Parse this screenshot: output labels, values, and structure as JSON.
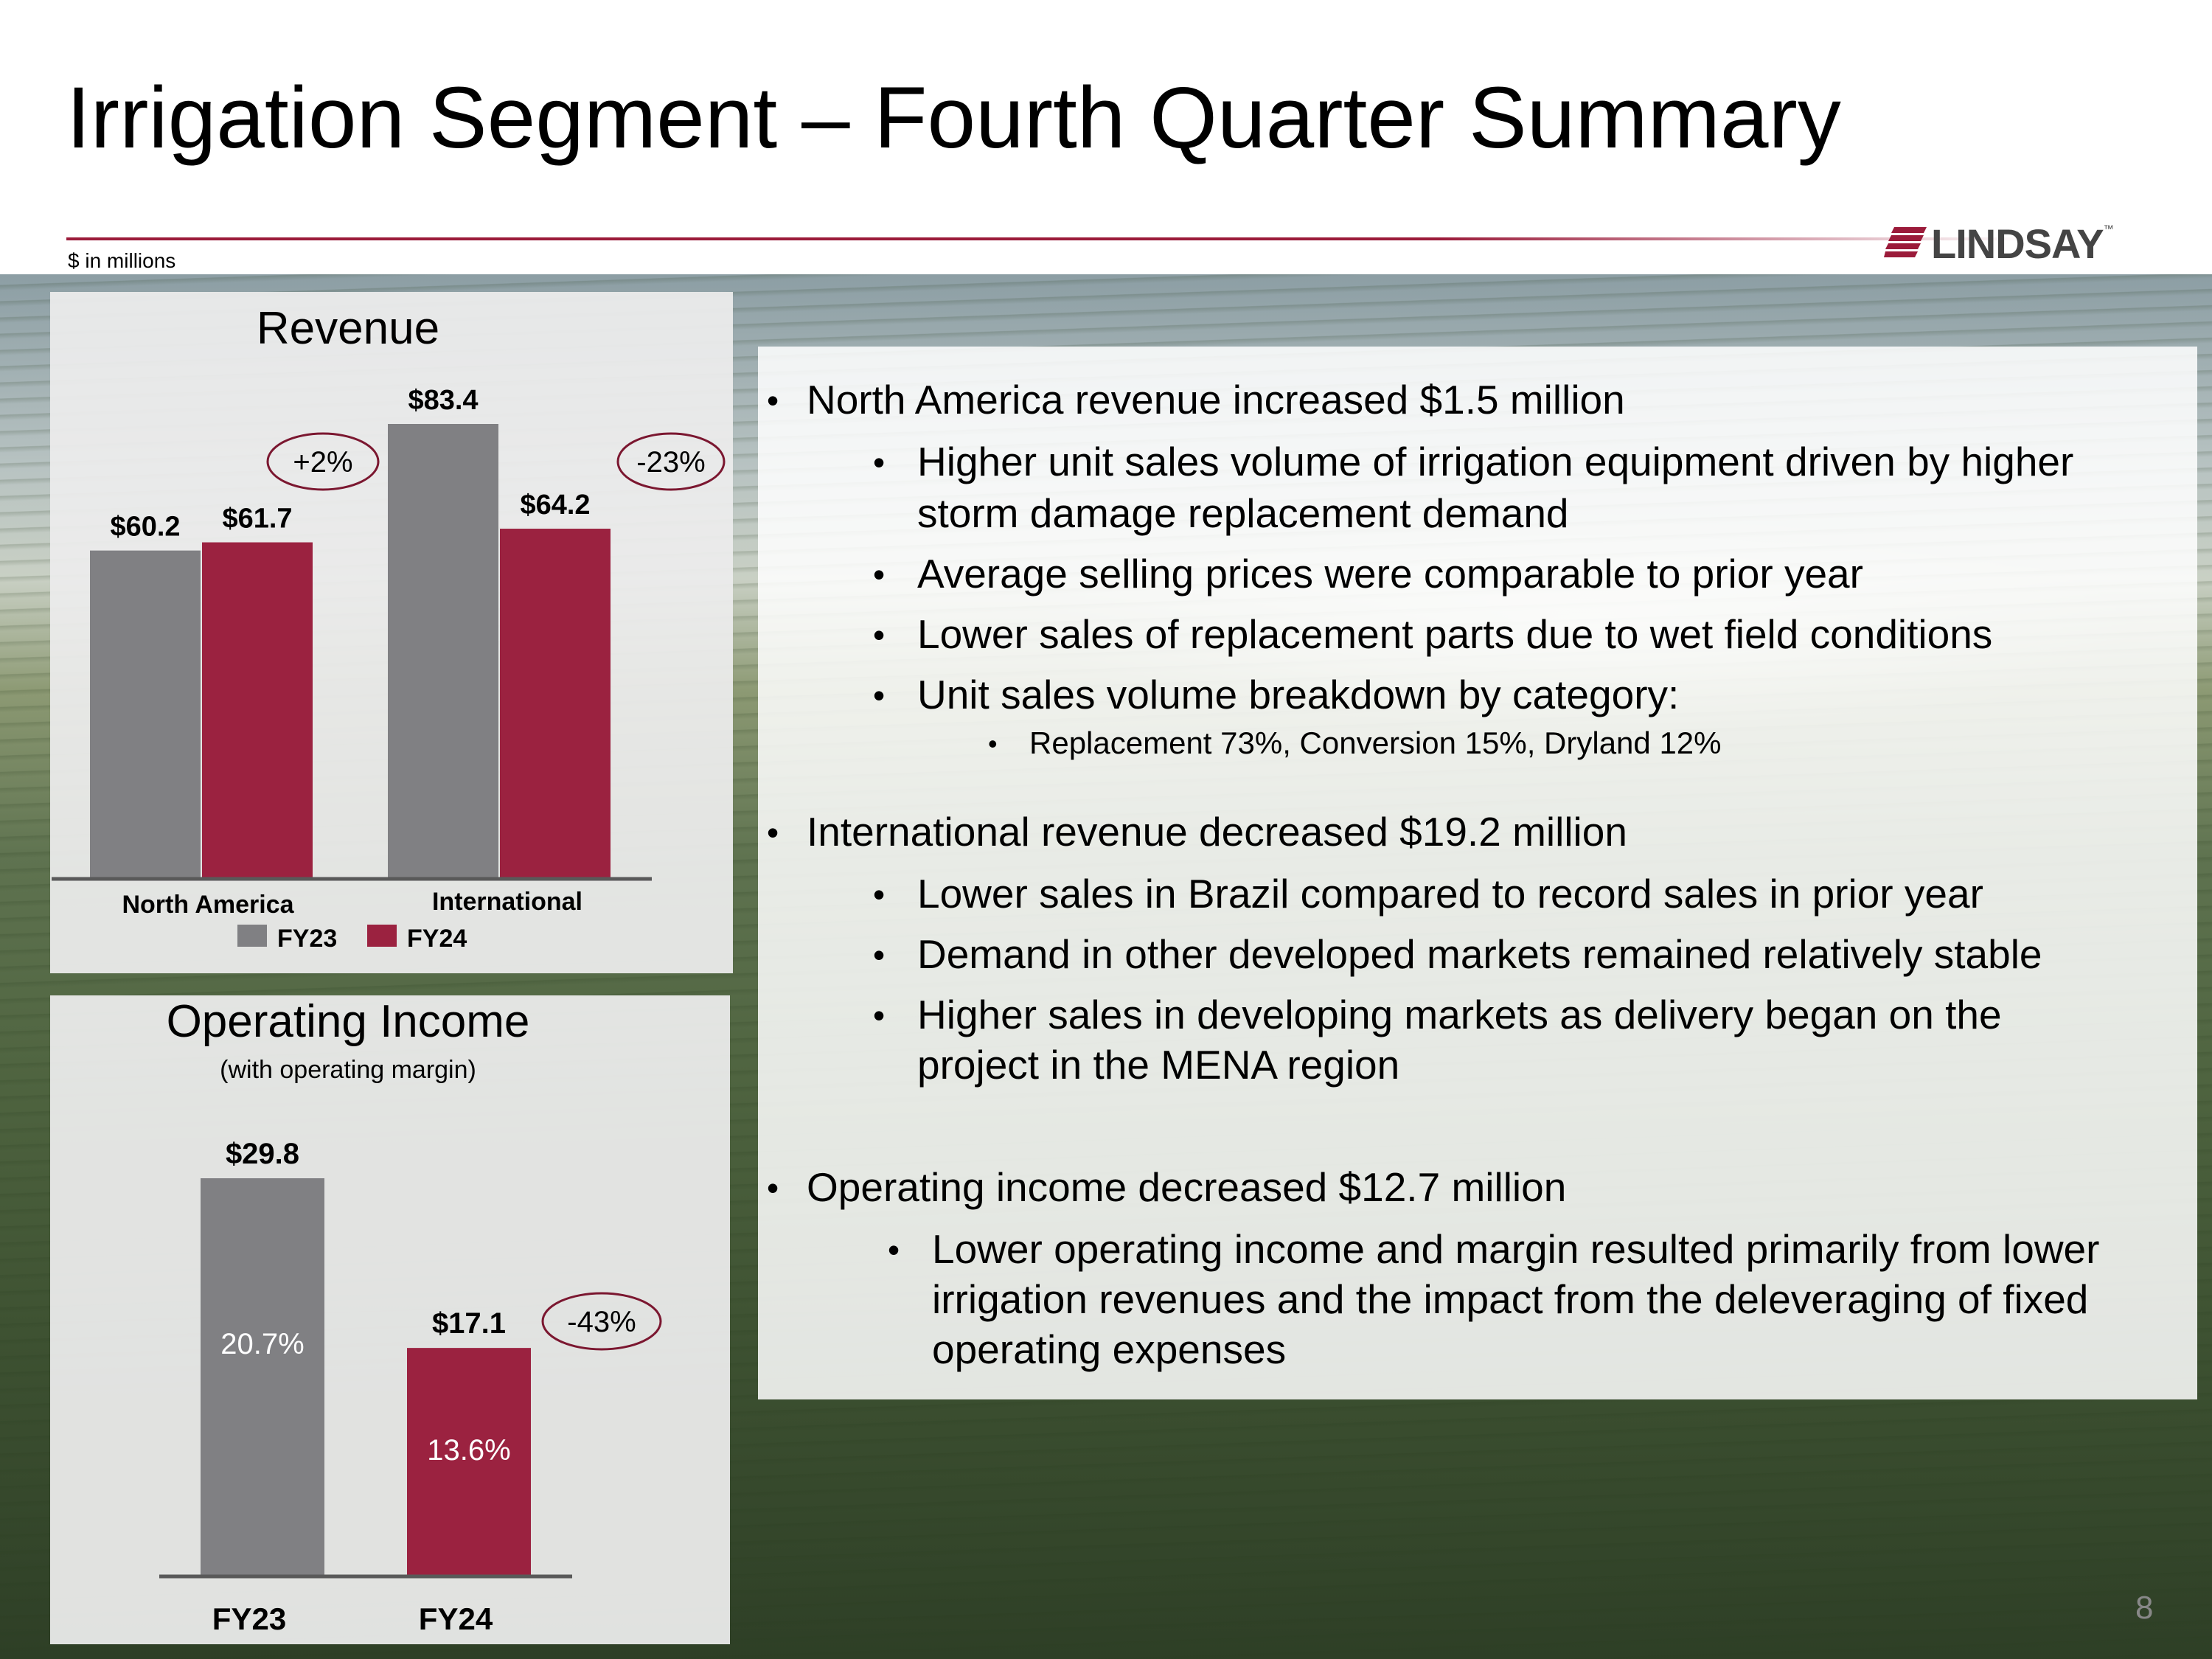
{
  "slide": {
    "title": "Irrigation Segment – Fourth Quarter Summary",
    "units_note": "$ in millions",
    "logo_text": "LINDSAY",
    "logo_tm": "™",
    "page_number": "8"
  },
  "colors": {
    "fy23": "#808083",
    "fy24": "#9b2240",
    "accent_rule": "#9b1b3a"
  },
  "chart_data": [
    {
      "type": "bar",
      "title": "Revenue",
      "categories": [
        "North America",
        "International"
      ],
      "series": [
        {
          "name": "FY23",
          "values": [
            60.2,
            83.4
          ],
          "labels": [
            "$60.2",
            "$83.4"
          ]
        },
        {
          "name": "FY24",
          "values": [
            61.7,
            64.2
          ],
          "labels": [
            "$61.7",
            "$64.2"
          ]
        }
      ],
      "change_labels": [
        "+2%",
        "-23%"
      ],
      "legend": [
        "FY23",
        "FY24"
      ],
      "ylim": [
        0,
        83.4
      ]
    },
    {
      "type": "bar",
      "title": "Operating Income",
      "subtitle": "(with operating margin)",
      "categories": [
        "FY23",
        "FY24"
      ],
      "values": [
        29.8,
        17.1
      ],
      "labels": [
        "$29.8",
        "$17.1"
      ],
      "margins": [
        "20.7%",
        "13.6%"
      ],
      "change_label": "-43%",
      "ylim": [
        0,
        29.8
      ]
    }
  ],
  "bullets": {
    "na_head": "North America revenue increased $1.5 million",
    "na_1": "Higher unit sales volume of irrigation equipment driven by higher",
    "na_1b": "storm damage replacement demand",
    "na_2": "Average selling prices were comparable to prior year",
    "na_3": "Lower sales of replacement parts due to wet field conditions",
    "na_4": "Unit sales volume breakdown by category:",
    "na_4a": "Replacement 73%, Conversion 15%, Dryland 12%",
    "intl_head": "International revenue decreased $19.2 million",
    "intl_1": "Lower sales in Brazil compared to record sales in prior year",
    "intl_2": "Demand in other developed markets remained relatively stable",
    "intl_3": "Higher sales in developing markets as delivery began on the",
    "intl_3b": "project in the MENA region",
    "op_head": "Operating income decreased $12.7 million",
    "op_1": "Lower operating income and margin resulted primarily from lower",
    "op_1b": "irrigation revenues and the impact from the deleveraging of fixed",
    "op_1c": "operating expenses",
    "bullet_char": "•"
  }
}
